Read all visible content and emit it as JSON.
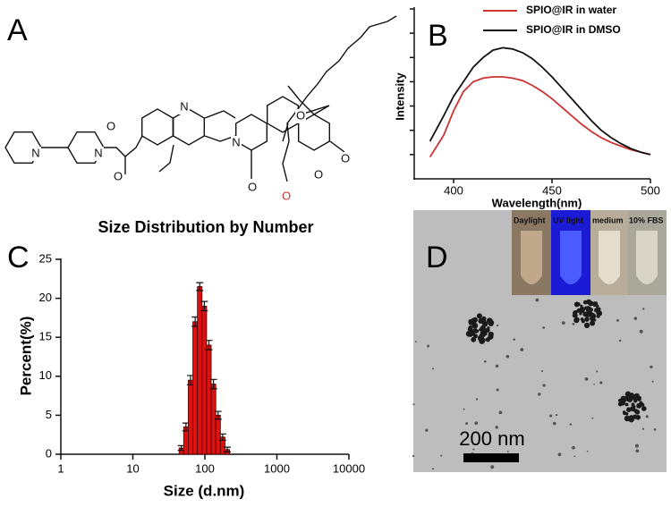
{
  "panel_labels": [
    "A",
    "B",
    "C",
    "D"
  ],
  "structure": {
    "atoms": [
      "N",
      "N",
      "O",
      "O",
      "N",
      "N",
      "O",
      "O",
      "O",
      "O",
      "O"
    ]
  },
  "chart_data": [
    {
      "type": "line",
      "xlabel": "Wavelength(nm)",
      "ylabel": "Intensity",
      "x": [
        388,
        395,
        400,
        405,
        410,
        415,
        420,
        425,
        430,
        435,
        440,
        445,
        450,
        455,
        460,
        465,
        470,
        475,
        480,
        485,
        490,
        495,
        500
      ],
      "series": [
        {
          "name": "SPIO@IR in water",
          "color": "#cc3333",
          "values": [
            0.9,
            1.8,
            2.8,
            3.6,
            4.0,
            4.15,
            4.2,
            4.2,
            4.15,
            4.05,
            3.85,
            3.6,
            3.3,
            2.95,
            2.6,
            2.25,
            1.95,
            1.7,
            1.5,
            1.35,
            1.2,
            1.1,
            1.0
          ]
        },
        {
          "name": "SPIO@IR in DMSO",
          "color": "#111111",
          "values": [
            1.55,
            2.6,
            3.4,
            4.0,
            4.6,
            5.0,
            5.3,
            5.4,
            5.35,
            5.2,
            4.95,
            4.6,
            4.2,
            3.75,
            3.3,
            2.85,
            2.4,
            2.0,
            1.7,
            1.45,
            1.25,
            1.1,
            1.0
          ]
        }
      ],
      "xlim": [
        380,
        500
      ],
      "xticks": [
        400,
        450,
        500
      ],
      "ylim": [
        0,
        7
      ],
      "yticks": [
        1,
        2,
        3,
        4,
        5,
        6,
        7
      ],
      "ytick_labels": false,
      "legend": "top-right"
    },
    {
      "type": "histogram",
      "title": "Size Distribution by Number",
      "xlabel": "Size (d.nm)",
      "ylabel": "Percent(%)",
      "bins": [
        43.82,
        50.75,
        58.77,
        68.06,
        78.82,
        91.28,
        105.7,
        122.4,
        141.8,
        164.2,
        190.1,
        220.2
      ],
      "values": [
        0.8,
        3.5,
        9.5,
        17,
        21.5,
        19,
        14,
        9,
        5,
        2.2,
        0.6
      ],
      "errors": [
        0.3,
        0.5,
        0.6,
        0.6,
        0.5,
        0.6,
        0.6,
        0.6,
        0.5,
        0.4,
        0.3
      ],
      "color": "#dd1111",
      "xscale": "log",
      "xlim": [
        1,
        10000
      ],
      "xticks": [
        1,
        10,
        100,
        1000,
        10000
      ],
      "ylim": [
        0,
        25
      ],
      "yticks": [
        0,
        5,
        10,
        15,
        20,
        25
      ]
    }
  ],
  "micrograph": {
    "inset_labels": [
      "Daylight",
      "UV light",
      "medium",
      "10% FBS"
    ],
    "scale_bar": "200 nm"
  }
}
